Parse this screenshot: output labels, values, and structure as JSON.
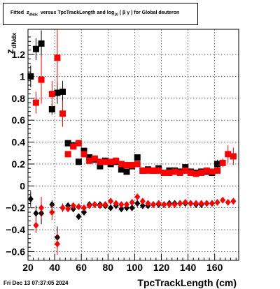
{
  "title": "Fitted z_dNdx versus TpcTrackLength and log_10(βγ) for Global deuteron",
  "title_parts": {
    "prefix": "Fitted",
    "z": "z",
    "z_sub": "dNdx",
    "middle": "versus TpcTrackLength and log",
    "log_sub": "10",
    "bg": "( β γ ) for Global deuteron"
  },
  "date_stamp": "Fri Dec 13 07:37:05 2024",
  "colors": {
    "series_black": "#000000",
    "series_red": "#ff0000",
    "grid": "#000000"
  },
  "chart_data": {
    "type": "scatter",
    "title": "Fitted z_dNdx versus TpcTrackLength and log_10(βγ) for Global deuteron",
    "xlabel": "TpcTrackLength (cm)",
    "ylabel": "z_dNdx",
    "ylabel_main": "z",
    "ylabel_sub": "dNdx",
    "xlim": [
      20,
      178
    ],
    "ylim": [
      -0.68,
      1.43
    ],
    "xticks": [
      20,
      40,
      60,
      80,
      100,
      120,
      140,
      160
    ],
    "yticks": [
      -0.6,
      -0.4,
      -0.2,
      0,
      0.2,
      0.4,
      0.6,
      0.8,
      1,
      1.2
    ],
    "ytick_labels": [
      "−0.6",
      "−0.4",
      "−0.2",
      "0",
      "0.2",
      "0.4",
      "0.6",
      "0.8",
      "1",
      "1.2"
    ],
    "grid": true,
    "series": [
      {
        "marker": "square",
        "color": "#000000",
        "points": [
          {
            "x": 22,
            "y": 1.0,
            "err": 0.1
          },
          {
            "x": 26,
            "y": 1.25,
            "err": 0.1
          },
          {
            "x": 30,
            "y": 1.3,
            "err": 0.12
          },
          {
            "x": 38,
            "y": 0.7,
            "err": 0.05
          },
          {
            "x": 42,
            "y": 0.85,
            "err": 0.1
          },
          {
            "x": 46,
            "y": 0.86,
            "err": 0.1
          },
          {
            "x": 50,
            "y": 0.39,
            "err": 0.02
          },
          {
            "x": 54,
            "y": 0.37,
            "err": 0.02
          },
          {
            "x": 58,
            "y": 0.22,
            "err": 0.02
          },
          {
            "x": 62,
            "y": 0.32,
            "err": 0.02
          },
          {
            "x": 66,
            "y": 0.26,
            "err": 0.02
          },
          {
            "x": 70,
            "y": 0.24,
            "err": 0.02
          },
          {
            "x": 74,
            "y": 0.18,
            "err": 0.02
          },
          {
            "x": 78,
            "y": 0.23,
            "err": 0.02
          },
          {
            "x": 82,
            "y": 0.2,
            "err": 0.02
          },
          {
            "x": 86,
            "y": 0.22,
            "err": 0.02
          },
          {
            "x": 90,
            "y": 0.15,
            "err": 0.02
          },
          {
            "x": 94,
            "y": 0.13,
            "err": 0.02
          },
          {
            "x": 98,
            "y": 0.18,
            "err": 0.02
          },
          {
            "x": 102,
            "y": 0.26,
            "err": 0.02
          },
          {
            "x": 106,
            "y": 0.14,
            "err": 0.02
          },
          {
            "x": 110,
            "y": 0.15,
            "err": 0.02
          },
          {
            "x": 114,
            "y": 0.14,
            "err": 0.02
          },
          {
            "x": 118,
            "y": 0.16,
            "err": 0.02
          },
          {
            "x": 122,
            "y": 0.12,
            "err": 0.02
          },
          {
            "x": 126,
            "y": 0.14,
            "err": 0.02
          },
          {
            "x": 130,
            "y": 0.14,
            "err": 0.02
          },
          {
            "x": 134,
            "y": 0.13,
            "err": 0.02
          },
          {
            "x": 138,
            "y": 0.17,
            "err": 0.02
          },
          {
            "x": 142,
            "y": 0.13,
            "err": 0.02
          },
          {
            "x": 146,
            "y": 0.12,
            "err": 0.02
          },
          {
            "x": 150,
            "y": 0.13,
            "err": 0.02
          },
          {
            "x": 154,
            "y": 0.13,
            "err": 0.02
          },
          {
            "x": 158,
            "y": 0.12,
            "err": 0.02
          },
          {
            "x": 162,
            "y": 0.2,
            "err": 0.04
          }
        ]
      },
      {
        "marker": "square",
        "color": "#ff0000",
        "points": [
          {
            "x": 26,
            "y": 0.76,
            "err": 0.1
          },
          {
            "x": 30,
            "y": 0.97,
            "err": 0.22
          },
          {
            "x": 38,
            "y": 0.84,
            "err": 0.12
          },
          {
            "x": 42,
            "y": 1.17,
            "err": 0.26
          },
          {
            "x": 46,
            "y": 0.66,
            "err": 0.12
          },
          {
            "x": 50,
            "y": 0.29,
            "err": 0.02
          },
          {
            "x": 54,
            "y": 0.36,
            "err": 0.02
          },
          {
            "x": 58,
            "y": 0.39,
            "err": 0.02
          },
          {
            "x": 62,
            "y": 0.29,
            "err": 0.02
          },
          {
            "x": 66,
            "y": 0.23,
            "err": 0.02
          },
          {
            "x": 70,
            "y": 0.25,
            "err": 0.02
          },
          {
            "x": 74,
            "y": 0.22,
            "err": 0.02
          },
          {
            "x": 78,
            "y": 0.22,
            "err": 0.02
          },
          {
            "x": 82,
            "y": 0.22,
            "err": 0.02
          },
          {
            "x": 86,
            "y": 0.23,
            "err": 0.02
          },
          {
            "x": 90,
            "y": 0.2,
            "err": 0.02
          },
          {
            "x": 94,
            "y": 0.19,
            "err": 0.02
          },
          {
            "x": 98,
            "y": 0.19,
            "err": 0.02
          },
          {
            "x": 102,
            "y": 0.2,
            "err": 0.02
          },
          {
            "x": 106,
            "y": 0.14,
            "err": 0.02
          },
          {
            "x": 110,
            "y": 0.14,
            "err": 0.02
          },
          {
            "x": 114,
            "y": 0.14,
            "err": 0.02
          },
          {
            "x": 118,
            "y": 0.14,
            "err": 0.02
          },
          {
            "x": 122,
            "y": 0.12,
            "err": 0.02
          },
          {
            "x": 126,
            "y": 0.12,
            "err": 0.02
          },
          {
            "x": 130,
            "y": 0.13,
            "err": 0.02
          },
          {
            "x": 134,
            "y": 0.12,
            "err": 0.02
          },
          {
            "x": 138,
            "y": 0.14,
            "err": 0.02
          },
          {
            "x": 142,
            "y": 0.12,
            "err": 0.02
          },
          {
            "x": 146,
            "y": 0.11,
            "err": 0.02
          },
          {
            "x": 150,
            "y": 0.12,
            "err": 0.02
          },
          {
            "x": 154,
            "y": 0.14,
            "err": 0.02
          },
          {
            "x": 158,
            "y": 0.13,
            "err": 0.02
          },
          {
            "x": 162,
            "y": 0.14,
            "err": 0.02
          },
          {
            "x": 166,
            "y": 0.21,
            "err": 0.04
          },
          {
            "x": 170,
            "y": 0.29,
            "err": 0.08
          },
          {
            "x": 174,
            "y": 0.27,
            "err": 0.08
          }
        ]
      },
      {
        "marker": "diamond",
        "color": "#000000",
        "points": [
          {
            "x": 22,
            "y": -0.12,
            "err": 0.07
          },
          {
            "x": 26,
            "y": -0.25,
            "err": 0.07
          },
          {
            "x": 30,
            "y": -0.25,
            "err": 0.1
          },
          {
            "x": 38,
            "y": -0.17,
            "err": 0.04
          },
          {
            "x": 42,
            "y": -0.47,
            "err": 0.1
          },
          {
            "x": 46,
            "y": -0.2,
            "err": 0.04
          },
          {
            "x": 50,
            "y": -0.18,
            "err": 0.02
          },
          {
            "x": 54,
            "y": -0.21,
            "err": 0.02
          },
          {
            "x": 58,
            "y": -0.28,
            "err": 0.02
          },
          {
            "x": 62,
            "y": -0.24,
            "err": 0.02
          },
          {
            "x": 66,
            "y": -0.17,
            "err": 0.02
          },
          {
            "x": 70,
            "y": -0.17,
            "err": 0.02
          },
          {
            "x": 74,
            "y": -0.17,
            "err": 0.02
          },
          {
            "x": 78,
            "y": -0.18,
            "err": 0.02
          },
          {
            "x": 82,
            "y": -0.2,
            "err": 0.02
          },
          {
            "x": 86,
            "y": -0.18,
            "err": 0.02
          },
          {
            "x": 90,
            "y": -0.21,
            "err": 0.02
          },
          {
            "x": 94,
            "y": -0.2,
            "err": 0.02
          },
          {
            "x": 98,
            "y": -0.2,
            "err": 0.02
          },
          {
            "x": 102,
            "y": -0.16,
            "err": 0.02
          },
          {
            "x": 106,
            "y": -0.18,
            "err": 0.02
          },
          {
            "x": 110,
            "y": -0.18,
            "err": 0.02
          },
          {
            "x": 114,
            "y": -0.17,
            "err": 0.02
          },
          {
            "x": 118,
            "y": -0.17,
            "err": 0.02
          },
          {
            "x": 122,
            "y": -0.17,
            "err": 0.02
          },
          {
            "x": 126,
            "y": -0.16,
            "err": 0.02
          },
          {
            "x": 130,
            "y": -0.16,
            "err": 0.02
          },
          {
            "x": 134,
            "y": -0.16,
            "err": 0.02
          },
          {
            "x": 138,
            "y": -0.16,
            "err": 0.02
          },
          {
            "x": 142,
            "y": -0.16,
            "err": 0.02
          },
          {
            "x": 146,
            "y": -0.17,
            "err": 0.02
          },
          {
            "x": 150,
            "y": -0.17,
            "err": 0.02
          },
          {
            "x": 154,
            "y": -0.16,
            "err": 0.02
          },
          {
            "x": 158,
            "y": -0.16,
            "err": 0.02
          }
        ]
      },
      {
        "marker": "diamond",
        "color": "#ff0000",
        "points": [
          {
            "x": 26,
            "y": -0.36,
            "err": 0.07
          },
          {
            "x": 30,
            "y": -0.2,
            "err": 0.1
          },
          {
            "x": 38,
            "y": -0.24,
            "err": 0.07
          },
          {
            "x": 42,
            "y": -0.53,
            "err": 0.1
          },
          {
            "x": 46,
            "y": -0.2,
            "err": 0.04
          },
          {
            "x": 50,
            "y": -0.21,
            "err": 0.02
          },
          {
            "x": 54,
            "y": -0.18,
            "err": 0.02
          },
          {
            "x": 58,
            "y": -0.19,
            "err": 0.02
          },
          {
            "x": 62,
            "y": -0.2,
            "err": 0.02
          },
          {
            "x": 66,
            "y": -0.18,
            "err": 0.02
          },
          {
            "x": 70,
            "y": -0.17,
            "err": 0.02
          },
          {
            "x": 74,
            "y": -0.18,
            "err": 0.02
          },
          {
            "x": 78,
            "y": -0.17,
            "err": 0.02
          },
          {
            "x": 82,
            "y": -0.14,
            "err": 0.02
          },
          {
            "x": 86,
            "y": -0.16,
            "err": 0.02
          },
          {
            "x": 90,
            "y": -0.17,
            "err": 0.02
          },
          {
            "x": 94,
            "y": -0.17,
            "err": 0.02
          },
          {
            "x": 98,
            "y": -0.15,
            "err": 0.02
          },
          {
            "x": 102,
            "y": -0.1,
            "err": 0.02
          },
          {
            "x": 106,
            "y": -0.14,
            "err": 0.02
          },
          {
            "x": 110,
            "y": -0.16,
            "err": 0.02
          },
          {
            "x": 114,
            "y": -0.17,
            "err": 0.02
          },
          {
            "x": 118,
            "y": -0.16,
            "err": 0.02
          },
          {
            "x": 122,
            "y": -0.17,
            "err": 0.02
          },
          {
            "x": 126,
            "y": -0.17,
            "err": 0.02
          },
          {
            "x": 130,
            "y": -0.17,
            "err": 0.02
          },
          {
            "x": 134,
            "y": -0.16,
            "err": 0.02
          },
          {
            "x": 138,
            "y": -0.15,
            "err": 0.02
          },
          {
            "x": 142,
            "y": -0.16,
            "err": 0.02
          },
          {
            "x": 146,
            "y": -0.16,
            "err": 0.02
          },
          {
            "x": 150,
            "y": -0.16,
            "err": 0.02
          },
          {
            "x": 154,
            "y": -0.16,
            "err": 0.02
          },
          {
            "x": 158,
            "y": -0.16,
            "err": 0.02
          },
          {
            "x": 162,
            "y": -0.15,
            "err": 0.02
          },
          {
            "x": 166,
            "y": -0.13,
            "err": 0.02
          },
          {
            "x": 170,
            "y": -0.15,
            "err": 0.02
          },
          {
            "x": 174,
            "y": -0.14,
            "err": 0.02
          }
        ]
      }
    ]
  }
}
